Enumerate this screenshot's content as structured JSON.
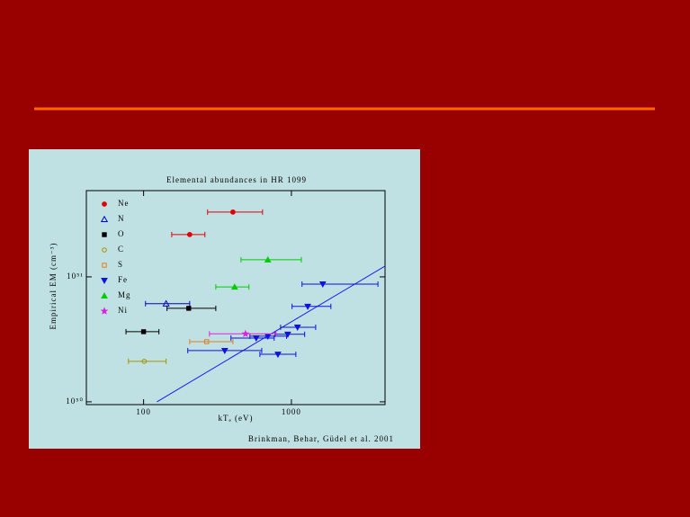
{
  "chart_data": {
    "type": "scatter",
    "title": "Elemental abundances in HR 1099",
    "x_label": "kTₑ (eV)",
    "y_label": "Empirical EM (cm⁻³)",
    "credit": "Brinkman, Behar, Güdel et al. 2001",
    "xscale": "log",
    "yscale": "log",
    "xlim": [
      41,
      4300
    ],
    "ylim": [
      9.5e+49,
      4.9e+51
    ],
    "xticks": [
      100,
      1000
    ],
    "yticks": [
      {
        "value": 1e+50,
        "label": "10⁵⁰"
      },
      {
        "value": 1e+51,
        "label": "10⁵¹"
      }
    ],
    "legend": "top-left",
    "series": [
      {
        "name": "Ne",
        "marker": "circle",
        "color": "#e00000",
        "x": [
          402,
          205
        ],
        "xmin": [
          271,
          155
        ],
        "xmax": [
          638,
          260
        ],
        "values": [
          3.3e+51,
          2.18e+51
        ]
      },
      {
        "name": "N",
        "marker": "triangle-open",
        "color": "#0000cc",
        "x": [
          142
        ],
        "xmin": [
          103
        ],
        "xmax": [
          205
        ],
        "values": [
          6.1e+50
        ]
      },
      {
        "name": "O",
        "marker": "square",
        "color": "#000000",
        "x": [
          202,
          100
        ],
        "xmin": [
          144,
          76
        ],
        "xmax": [
          308,
          127
        ],
        "values": [
          5.6e+50,
          3.64e+50
        ]
      },
      {
        "name": "C",
        "marker": "circle-open",
        "color": "#a89400",
        "x": [
          101
        ],
        "xmin": [
          79
        ],
        "xmax": [
          142
        ],
        "values": [
          2.11e+50
        ]
      },
      {
        "name": "S",
        "marker": "square-open",
        "color": "#e08020",
        "x": [
          267
        ],
        "xmin": [
          205
        ],
        "xmax": [
          402
        ],
        "values": [
          3.03e+50
        ]
      },
      {
        "name": "Fe",
        "marker": "triangle-down",
        "color": "#1010e0",
        "x": [
          1630,
          1290,
          1100,
          945,
          693,
          578,
          811,
          354
        ],
        "xmin": [
          1180,
          1010,
          845,
          776,
          524,
          390,
          612,
          199
        ],
        "xmax": [
          3850,
          1850,
          1460,
          1230,
          927,
          765,
          1072,
          630
        ],
        "values": [
          8.75e+50,
          5.8e+50,
          3.95e+50,
          3.47e+50,
          3.35e+50,
          3.24e+50,
          2.4e+50,
          2.57e+50
        ]
      },
      {
        "name": "Mg",
        "marker": "triangle",
        "color": "#00cc00",
        "x": [
          693,
          413
        ],
        "xmin": [
          456,
          308
        ],
        "xmax": [
          1167,
          516
        ],
        "values": [
          1.37e+51,
          8.3e+50
        ]
      },
      {
        "name": "Ni",
        "marker": "star",
        "color": "#e020e0",
        "x": [
          489
        ],
        "xmin": [
          279
        ],
        "xmax": [
          787
        ],
        "values": [
          3.5e+50
        ]
      }
    ],
    "fit_line": {
      "color": "#1a1aee",
      "x": [
        123,
        4300
      ],
      "values": [
        1e+50,
        1.22e+51
      ]
    }
  }
}
